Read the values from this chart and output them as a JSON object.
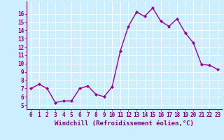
{
  "x": [
    0,
    1,
    2,
    3,
    4,
    5,
    6,
    7,
    8,
    9,
    10,
    11,
    12,
    13,
    14,
    15,
    16,
    17,
    18,
    19,
    20,
    21,
    22,
    23
  ],
  "y": [
    7.0,
    7.5,
    7.0,
    5.3,
    5.5,
    5.5,
    7.0,
    7.3,
    6.3,
    6.0,
    7.2,
    11.5,
    14.5,
    16.2,
    15.7,
    16.7,
    15.1,
    14.5,
    15.4,
    13.7,
    12.5,
    9.9,
    9.8,
    9.3
  ],
  "line_color": "#990099",
  "marker": "D",
  "markersize": 2.0,
  "linewidth": 1.0,
  "xlabel": "Windchill (Refroidissement éolien,°C)",
  "xlabel_fontsize": 6.5,
  "ylim": [
    4.5,
    17.5
  ],
  "xlim": [
    -0.5,
    23.5
  ],
  "yticks": [
    5,
    6,
    7,
    8,
    9,
    10,
    11,
    12,
    13,
    14,
    15,
    16
  ],
  "xticks": [
    0,
    1,
    2,
    3,
    4,
    5,
    6,
    7,
    8,
    9,
    10,
    11,
    12,
    13,
    14,
    15,
    16,
    17,
    18,
    19,
    20,
    21,
    22,
    23
  ],
  "tick_fontsize": 5.5,
  "bg_color": "#cceeff",
  "grid_color": "#ffffff",
  "tick_color": "#800080",
  "axis_color": "#800080",
  "spine_color": "#800080"
}
